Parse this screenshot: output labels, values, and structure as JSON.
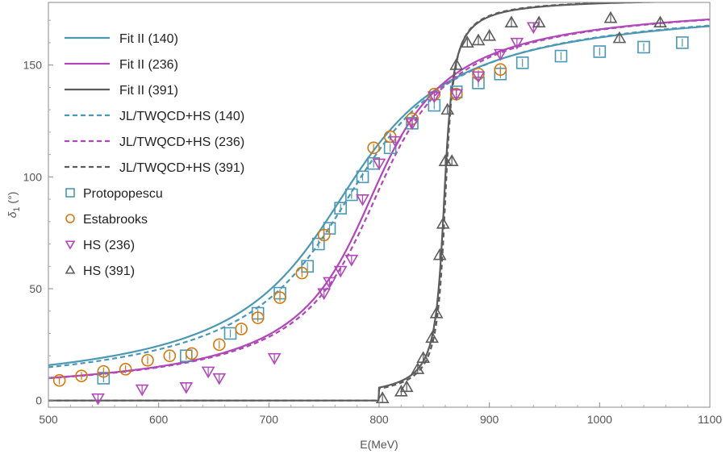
{
  "chart_data": {
    "type": "scatter",
    "xlabel": "E(MeV)",
    "ylabel_symbol": "δ",
    "ylabel_sub": "1",
    "ylabel_unit": " (°)",
    "xlim": [
      500,
      1100
    ],
    "ylim": [
      -3,
      178
    ],
    "xticks": [
      500,
      600,
      700,
      800,
      900,
      1000,
      1100
    ],
    "yticks": [
      0,
      50,
      100,
      150
    ],
    "colors": {
      "c140": "#4A98B4",
      "c236": "#B047B8",
      "c391": "#5C5C5C",
      "estabrooks": "#D37710"
    },
    "curves": [
      {
        "name": "Fit II (140)",
        "color": "c140",
        "dash": false,
        "mass": 765,
        "width": 75,
        "pmin": 500
      },
      {
        "name": "Fit II (236)",
        "color": "c236",
        "dash": false,
        "mass": 792,
        "width": 52,
        "pmin": 500
      },
      {
        "name": "Fit II (391)",
        "color": "c391",
        "dash": false,
        "mass": 859,
        "width": 6,
        "pmin": 800
      },
      {
        "name": "JL/TWQCD+HS (140)",
        "color": "c140",
        "dash": true,
        "mass": 771,
        "width": 72,
        "pmin": 500
      },
      {
        "name": "JL/TWQCD+HS (236)",
        "color": "c236",
        "dash": true,
        "mass": 796,
        "width": 52,
        "pmin": 500
      },
      {
        "name": "JL/TWQCD+HS (391)",
        "color": "c391",
        "dash": true,
        "mass": 860,
        "width": 5.6,
        "pmin": 800
      }
    ],
    "points": [
      {
        "name": "Protopopescu",
        "color": "c140",
        "marker": "square",
        "x": [
          550,
          625,
          665,
          690,
          710,
          735,
          745,
          755,
          765,
          775,
          785,
          795,
          810,
          830,
          850,
          870,
          890,
          910,
          930,
          965,
          1000,
          1040,
          1075
        ],
        "y": [
          10,
          20,
          30,
          39,
          48,
          60,
          70,
          77,
          86,
          92,
          100,
          106,
          113,
          124,
          132,
          138,
          142,
          146,
          151,
          154,
          156,
          158,
          160
        ]
      },
      {
        "name": "Estabrooks",
        "color": "estabrooks",
        "marker": "circle",
        "x": [
          510,
          530,
          550,
          570,
          590,
          610,
          630,
          655,
          675,
          690,
          710,
          730,
          750,
          795,
          810,
          830,
          850,
          870,
          890,
          910
        ],
        "y": [
          9,
          11,
          13,
          14,
          18,
          20,
          21,
          25,
          32,
          37,
          46,
          57,
          74,
          113,
          118,
          126,
          137,
          137,
          146,
          148
        ]
      },
      {
        "name": "HS (236)",
        "color": "c236",
        "marker": "down-triangle",
        "x": [
          545,
          585,
          625,
          645,
          655,
          705,
          750,
          755,
          765,
          775,
          785,
          800,
          815,
          830,
          850,
          870,
          890,
          910,
          925,
          940
        ],
        "y": [
          1,
          5,
          6,
          13,
          10,
          19,
          48,
          53,
          58,
          63,
          90,
          106,
          116,
          124,
          136,
          137,
          145,
          155,
          160,
          167
        ]
      },
      {
        "name": "HS (391)",
        "color": "c391",
        "marker": "up-triangle",
        "x": [
          803,
          820,
          825,
          835,
          840,
          848,
          852,
          855,
          858,
          860,
          862,
          866,
          870,
          880,
          890,
          900,
          920,
          945,
          1010,
          1018,
          1055
        ],
        "y": [
          1,
          4,
          6,
          14,
          19,
          28,
          39,
          65,
          79,
          107,
          130,
          107,
          150,
          160,
          161,
          163,
          169,
          169,
          171,
          162,
          169
        ]
      }
    ],
    "legend_position": "top-left"
  }
}
